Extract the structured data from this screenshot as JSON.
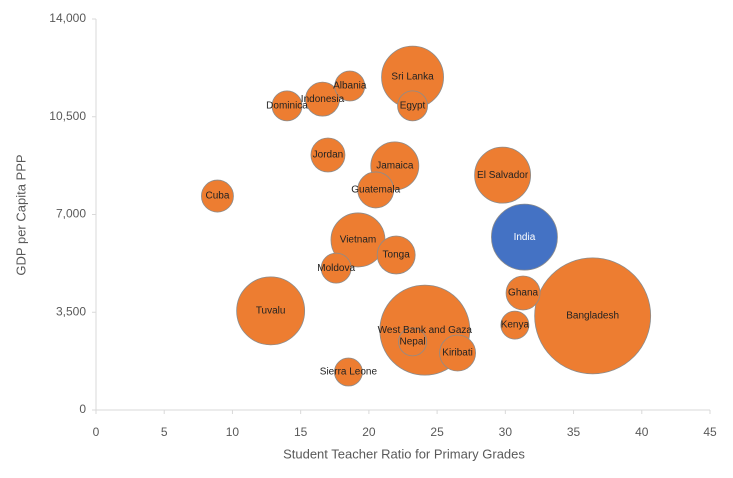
{
  "chart_data": {
    "type": "bubble",
    "x_label": "Student Teacher Ratio for Primary Grades",
    "y_label": "GDP per Capita PPP",
    "labels": [
      "Bangladesh",
      "West Bank and Gaza",
      "Nepal",
      "India",
      "Tuvalu",
      "El Salvador",
      "Sri Lanka",
      "Vietnam",
      "Jamaica",
      "Tonga",
      "Guatemala",
      "Kiribati",
      "Jordan",
      "Ghana",
      "Indonesia",
      "Cuba",
      "Dominica",
      "Albania",
      "Egypt",
      "Moldova",
      "Kenya",
      "Sierra Leone"
    ],
    "x": [
      36.4,
      24.1,
      23.2,
      31.4,
      12.8,
      29.8,
      23.2,
      19.2,
      21.9,
      22.0,
      20.5,
      26.5,
      17.0,
      31.3,
      16.6,
      8.9,
      14.0,
      18.6,
      23.2,
      17.6,
      30.7,
      18.5
    ],
    "y": [
      3370,
      2860,
      2440,
      6190,
      3550,
      8410,
      11920,
      6090,
      8740,
      5550,
      7880,
      2040,
      9130,
      4190,
      11130,
      7660,
      10890,
      11600,
      10890,
      5080,
      3040,
      1360
    ],
    "sizes": [
      3364,
      2025,
      196,
      1089,
      1156,
      784,
      961,
      729,
      576,
      361,
      324,
      324,
      289,
      289,
      289,
      256,
      225,
      225,
      225,
      225,
      196,
      196
    ],
    "colors": [
      "#ED7D31",
      "#ED7D31",
      "#ED7D31",
      "#4472C4",
      "#ED7D31",
      "#ED7D31",
      "#ED7D31",
      "#ED7D31",
      "#ED7D31",
      "#ED7D31",
      "#ED7D31",
      "#ED7D31",
      "#ED7D31",
      "#ED7D31",
      "#ED7D31",
      "#ED7D31",
      "#ED7D31",
      "#ED7D31",
      "#ED7D31",
      "#ED7D31",
      "#ED7D31",
      "#ED7D31"
    ],
    "xlim": [
      0,
      45
    ],
    "xticks": [
      0,
      5,
      10,
      15,
      20,
      25,
      30,
      35,
      40,
      45
    ],
    "ylim": [
      0,
      14000
    ],
    "yticks": [
      0,
      {
        "value": 3500,
        "label": "3,500"
      },
      {
        "value": 7000,
        "label": "7,000"
      },
      {
        "value": 10500,
        "label": "10,500"
      },
      {
        "value": 14000,
        "label": "14,000"
      }
    ]
  }
}
